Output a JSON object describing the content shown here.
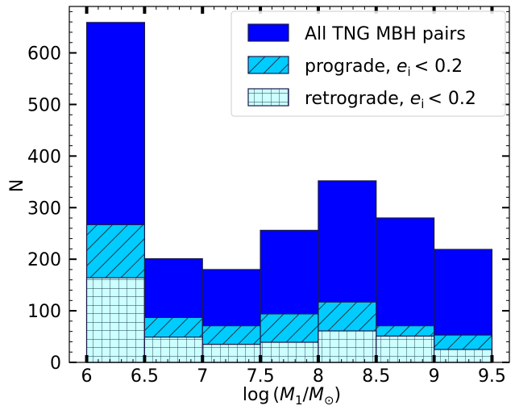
{
  "chart_data": {
    "type": "bar",
    "bin_edges": [
      6,
      6.5,
      7,
      7.5,
      8,
      8.5,
      9,
      9.5
    ],
    "series": [
      {
        "name": "All TNG MBH pairs",
        "values": [
          659,
          201,
          180,
          256,
          352,
          280,
          219
        ],
        "color": "#0000ff",
        "hatch": "none"
      },
      {
        "name": "prograde, e_i < 0.2",
        "values": [
          267,
          87,
          71,
          94,
          117,
          71,
          53
        ],
        "color": "#00ccff",
        "hatch": "diagonal"
      },
      {
        "name": "retrograde, e_i < 0.2",
        "values": [
          164,
          49,
          35,
          39,
          61,
          51,
          25
        ],
        "color": "#ccffff",
        "hatch": "grid"
      }
    ],
    "xlabel": "log (M_1/M_⊙)",
    "ylabel": "N",
    "xlim": [
      5.85,
      9.65
    ],
    "ylim": [
      0,
      690
    ],
    "xticks": [
      "6",
      "6.5",
      "7",
      "7.5",
      "8",
      "8.5",
      "9",
      "9.5"
    ],
    "yticks": [
      "0",
      "100",
      "200",
      "300",
      "400",
      "500",
      "600"
    ],
    "legend_placement": "top-right",
    "grid": false
  }
}
